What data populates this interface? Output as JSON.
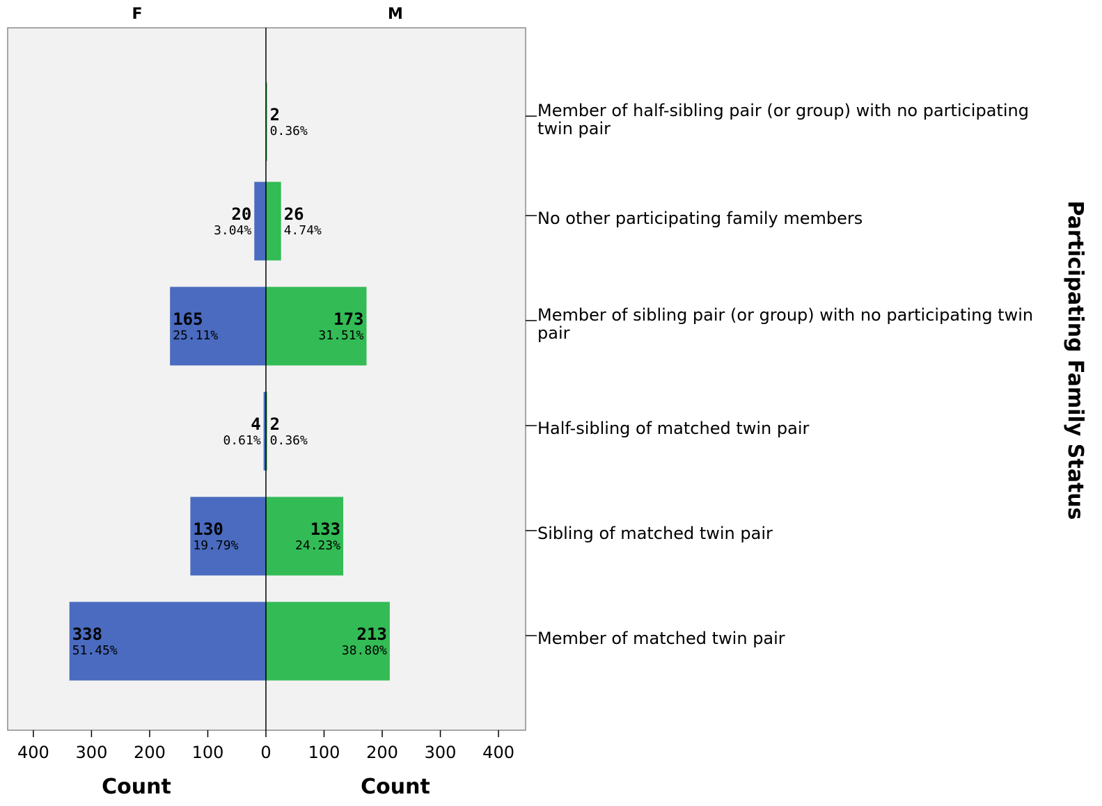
{
  "chart_data": {
    "type": "bar",
    "orientation": "horizontal-population-pyramid",
    "panels": [
      "F",
      "M"
    ],
    "categories": [
      "Member of half-sibling pair (or group) with no participating twin pair",
      "No other participating family members",
      "Member of sibling pair (or group) with no participating twin pair",
      "Half-sibling of matched twin pair",
      "Sibling of matched twin pair",
      "Member of matched twin pair"
    ],
    "category_lines": [
      [
        "Member of half-sibling pair (or group) with no participating",
        "twin pair"
      ],
      [
        "No other participating family members"
      ],
      [
        "Member of sibling pair (or group) with no participating twin",
        "pair"
      ],
      [
        "Half-sibling of matched twin pair"
      ],
      [
        "Sibling of matched twin pair"
      ],
      [
        "Member of matched twin pair"
      ]
    ],
    "series": [
      {
        "name": "F",
        "values": [
          0,
          20,
          165,
          4,
          130,
          338
        ],
        "percents": [
          "",
          "3.04%",
          "25.11%",
          "0.61%",
          "19.79%",
          "51.45%"
        ],
        "color": "#4a6bbf"
      },
      {
        "name": "M",
        "values": [
          2,
          26,
          173,
          2,
          133,
          213
        ],
        "percents": [
          "0.36%",
          "4.74%",
          "31.51%",
          "0.36%",
          "24.23%",
          "38.80%"
        ],
        "color": "#33bb55"
      }
    ],
    "xlabel": "Count",
    "ylabel": "Participating Family Status",
    "xlim": [
      0,
      400
    ],
    "xticks": [
      400,
      300,
      200,
      100,
      0,
      100,
      200,
      300,
      400
    ],
    "grid": false,
    "plot_background": "#f2f2f2"
  }
}
